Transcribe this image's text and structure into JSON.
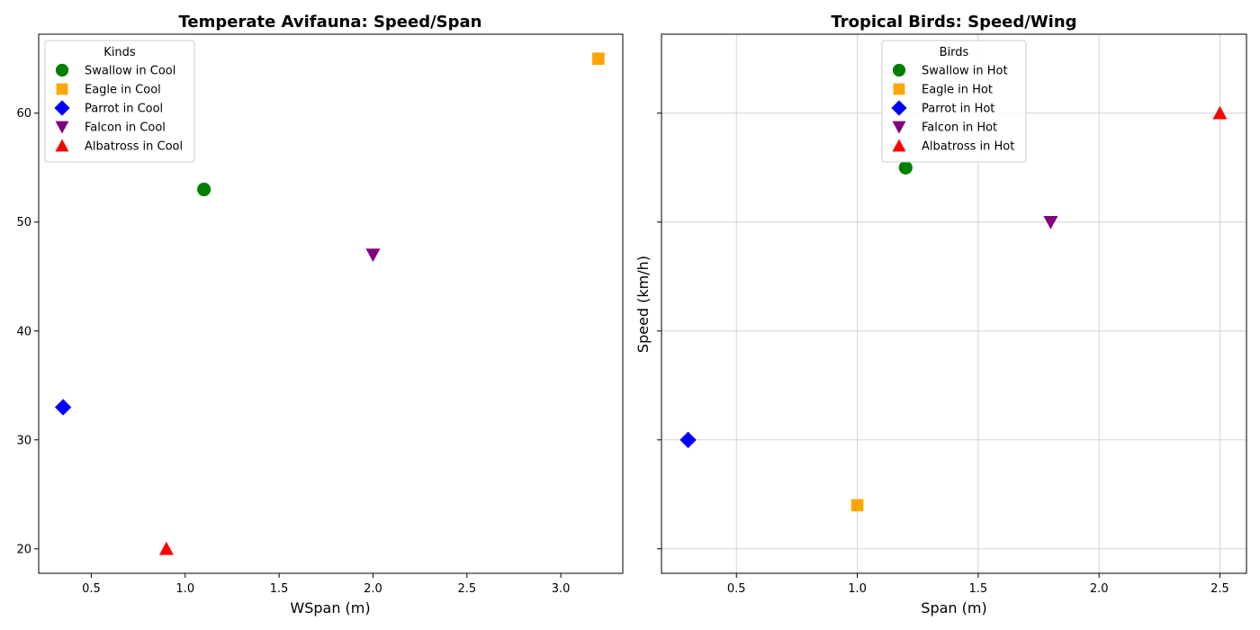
{
  "chart_data": [
    {
      "type": "scatter",
      "title": "Temperate Avifauna: Speed/Span",
      "xlabel": "WSpan (m)",
      "ylabel": "",
      "xlim": [
        0.22,
        3.33
      ],
      "ylim": [
        17.75,
        67.25
      ],
      "xticks": [
        0.5,
        1.0,
        1.5,
        2.0,
        2.5,
        3.0
      ],
      "yticks": [
        20,
        30,
        40,
        50,
        60
      ],
      "show_ytick_labels": true,
      "grid": false,
      "legend": {
        "title": "Kinds",
        "placement": "upper-left"
      },
      "series": [
        {
          "name": "Swallow in Cool",
          "marker": "circle",
          "color": "#008000",
          "x": [
            1.1
          ],
          "y": [
            53
          ]
        },
        {
          "name": "Eagle in Cool",
          "marker": "square",
          "color": "#FFA500",
          "x": [
            3.2
          ],
          "y": [
            65
          ]
        },
        {
          "name": "Parrot in Cool",
          "marker": "diamond",
          "color": "#0000FF",
          "x": [
            0.35
          ],
          "y": [
            33
          ]
        },
        {
          "name": "Falcon in Cool",
          "marker": "triangle-down",
          "color": "#800080",
          "x": [
            2.0
          ],
          "y": [
            47
          ]
        },
        {
          "name": "Albatross in Cool",
          "marker": "triangle-up",
          "color": "#FF0000",
          "x": [
            0.9
          ],
          "y": [
            20
          ]
        }
      ]
    },
    {
      "type": "scatter",
      "title": "Tropical Birds: Speed/Wing",
      "xlabel": "Span (m)",
      "ylabel": "Speed (km/h)",
      "xlim": [
        0.19,
        2.61
      ],
      "ylim": [
        17.75,
        67.25
      ],
      "xticks": [
        0.5,
        1.0,
        1.5,
        2.0,
        2.5
      ],
      "yticks": [
        20,
        30,
        40,
        50,
        60
      ],
      "show_ytick_labels": false,
      "grid": true,
      "legend": {
        "title": "Birds",
        "placement": "upper-center"
      },
      "series": [
        {
          "name": "Swallow in Hot",
          "marker": "circle",
          "color": "#008000",
          "x": [
            1.2
          ],
          "y": [
            55
          ]
        },
        {
          "name": "Eagle in Hot",
          "marker": "square",
          "color": "#FFA500",
          "x": [
            1.0
          ],
          "y": [
            24
          ]
        },
        {
          "name": "Parrot in Hot",
          "marker": "diamond",
          "color": "#0000FF",
          "x": [
            0.3
          ],
          "y": [
            30
          ]
        },
        {
          "name": "Falcon in Hot",
          "marker": "triangle-down",
          "color": "#800080",
          "x": [
            1.8
          ],
          "y": [
            50
          ]
        },
        {
          "name": "Albatross in Hot",
          "marker": "triangle-up",
          "color": "#FF0000",
          "x": [
            2.5
          ],
          "y": [
            60
          ]
        }
      ]
    }
  ]
}
